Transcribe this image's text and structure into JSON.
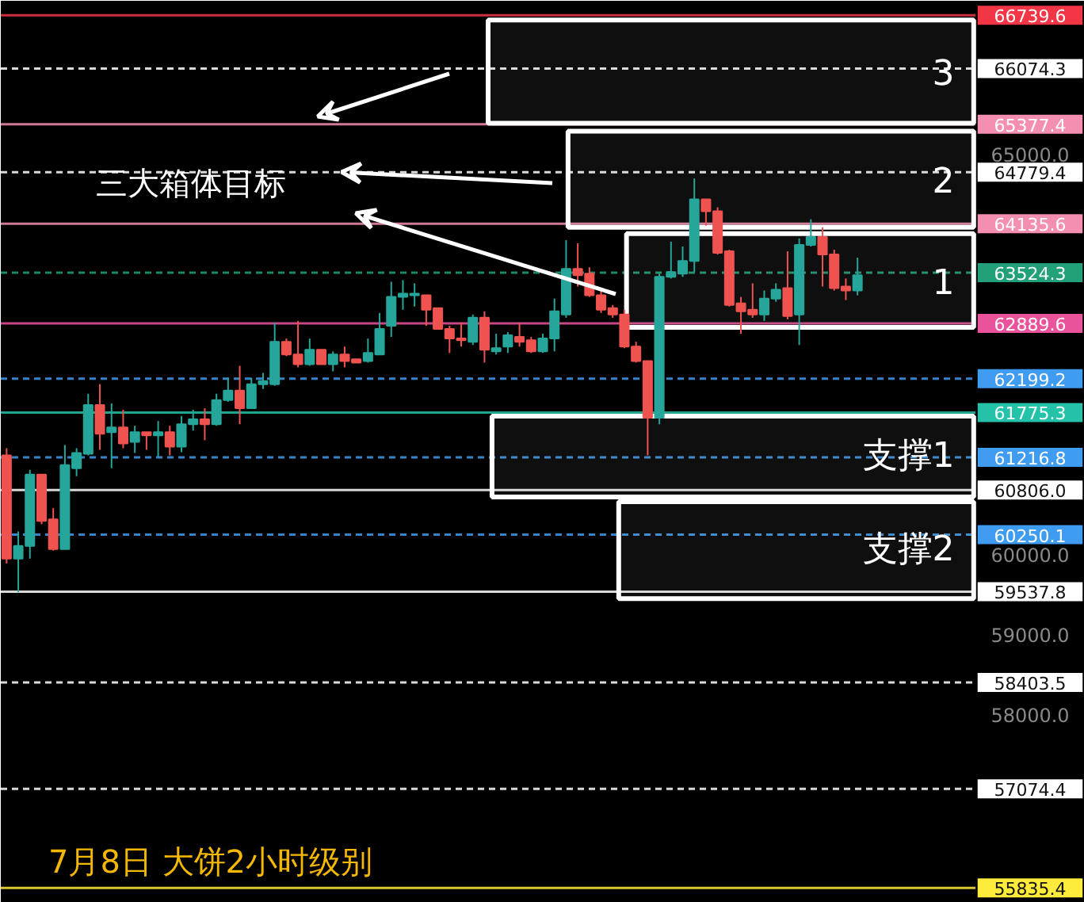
{
  "chart_data": {
    "type": "candlestick",
    "categories": [
      null,
      null,
      null,
      null,
      null,
      null,
      null,
      null,
      null,
      null,
      null,
      null,
      null,
      null,
      null,
      null,
      null,
      null,
      null,
      null,
      null,
      null,
      null,
      null,
      null,
      null,
      null,
      null,
      null,
      null,
      null,
      null,
      null,
      null,
      null,
      null,
      null,
      null,
      null,
      null,
      null,
      null,
      null,
      null,
      null,
      null,
      null,
      null,
      null,
      null,
      null,
      null,
      null,
      null,
      null,
      null,
      null,
      null,
      null,
      null,
      null,
      null,
      null,
      null,
      null,
      null,
      null,
      null,
      null,
      null,
      null,
      null,
      null,
      null,
      null,
      null,
      null,
      null,
      null,
      null,
      null,
      null,
      null,
      null,
      null,
      null,
      null,
      null,
      null,
      null,
      null,
      null,
      null
    ],
    "ohlc": [
      [
        61240,
        61330,
        59890,
        59950
      ],
      [
        59950,
        60290,
        59530,
        60110
      ],
      [
        60110,
        61060,
        59950,
        61000
      ],
      [
        61000,
        61000,
        60380,
        60420
      ],
      [
        60440,
        60580,
        60050,
        60070
      ],
      [
        60070,
        61370,
        60070,
        61120
      ],
      [
        61080,
        61330,
        60980,
        61270
      ],
      [
        61260,
        62010,
        61240,
        61870
      ],
      [
        61870,
        62130,
        61310,
        61510
      ],
      [
        61530,
        61890,
        61080,
        61590
      ],
      [
        61590,
        61810,
        61330,
        61390
      ],
      [
        61410,
        61610,
        61270,
        61530
      ],
      [
        61530,
        61530,
        61310,
        61490
      ],
      [
        61490,
        61670,
        61220,
        61530
      ],
      [
        61530,
        61610,
        61240,
        61350
      ],
      [
        61350,
        61730,
        61280,
        61630
      ],
      [
        61630,
        61810,
        61550,
        61690
      ],
      [
        61690,
        61830,
        61430,
        61630
      ],
      [
        61630,
        62010,
        61610,
        61930
      ],
      [
        61930,
        62210,
        61910,
        62050
      ],
      [
        62050,
        62360,
        61630,
        61830
      ],
      [
        61830,
        62210,
        61830,
        62130
      ],
      [
        62130,
        62270,
        62070,
        62170
      ],
      [
        62130,
        62900,
        62110,
        62660
      ],
      [
        62660,
        62700,
        62480,
        62500
      ],
      [
        62500,
        62920,
        62340,
        62380
      ],
      [
        62380,
        62700,
        62360,
        62560
      ],
      [
        62560,
        62560,
        62380,
        62380
      ],
      [
        62380,
        62540,
        62290,
        62500
      ],
      [
        62500,
        62600,
        62340,
        62420
      ],
      [
        62440,
        62440,
        62400,
        62400
      ],
      [
        62420,
        62700,
        62400,
        62520
      ],
      [
        62500,
        63020,
        62500,
        62820
      ],
      [
        62860,
        63410,
        62720,
        63220
      ],
      [
        63220,
        63430,
        63060,
        63260
      ],
      [
        63240,
        63390,
        63100,
        63260
      ],
      [
        63240,
        63240,
        62860,
        63060
      ],
      [
        63080,
        63080,
        62820,
        62820
      ],
      [
        62820,
        62860,
        62520,
        62700
      ],
      [
        62700,
        62900,
        62600,
        62680
      ],
      [
        62660,
        63000,
        62620,
        62960
      ],
      [
        62960,
        63040,
        62400,
        62560
      ],
      [
        62540,
        62760,
        62500,
        62580
      ],
      [
        62600,
        62780,
        62520,
        62740
      ],
      [
        62720,
        62900,
        62600,
        62660
      ],
      [
        62680,
        62720,
        62520,
        62540
      ],
      [
        62540,
        62760,
        62520,
        62700
      ],
      [
        62700,
        63200,
        62540,
        63040
      ],
      [
        63000,
        63930,
        62960,
        63570
      ],
      [
        63570,
        63890,
        63350,
        63490
      ],
      [
        63510,
        63590,
        63220,
        63240
      ],
      [
        63240,
        63300,
        63020,
        63060
      ],
      [
        63080,
        63120,
        62960,
        63000
      ],
      [
        63000,
        63060,
        62580,
        62600
      ],
      [
        62600,
        62660,
        62400,
        62420
      ],
      [
        62420,
        62420,
        61240,
        61710
      ],
      [
        61710,
        63510,
        61630,
        63470
      ],
      [
        63470,
        63910,
        63450,
        63530
      ],
      [
        63510,
        63850,
        63470,
        63670
      ],
      [
        63670,
        64700,
        63530,
        64440
      ],
      [
        64440,
        64440,
        64110,
        64290
      ],
      [
        64290,
        64340,
        63750,
        63770
      ],
      [
        63790,
        63810,
        63100,
        63120
      ],
      [
        63140,
        63220,
        62760,
        63040
      ],
      [
        63060,
        63390,
        62960,
        63000
      ],
      [
        63000,
        63300,
        62920,
        63200
      ],
      [
        63200,
        63390,
        63160,
        63310
      ],
      [
        63330,
        63790,
        62940,
        62980
      ],
      [
        63000,
        63950,
        62620,
        63870
      ],
      [
        63870,
        64190,
        63850,
        63970
      ],
      [
        63970,
        64090,
        63350,
        63750
      ],
      [
        63750,
        63810,
        63300,
        63330
      ],
      [
        63350,
        63450,
        63180,
        63300
      ],
      [
        63300,
        63710,
        63240,
        63490
      ],
      null,
      null,
      null,
      null,
      null,
      null,
      null,
      null,
      null,
      null,
      null,
      null,
      null,
      null,
      null,
      null,
      null,
      null,
      null
    ],
    "colors": [
      "#ef5350",
      "#26a69a",
      "#26a69a",
      "#ef5350",
      "#ef5350",
      "#26a69a",
      "#26a69a",
      "#26a69a",
      "#ef5350",
      "#26a69a",
      "#ef5350",
      "#26a69a",
      "#ef5350",
      "#26a69a",
      "#ef5350",
      "#26a69a",
      "#26a69a",
      "#ef5350",
      "#26a69a",
      "#26a69a",
      "#ef5350",
      "#26a69a",
      "#26a69a",
      "#26a69a",
      "#ef5350",
      "#ef5350",
      "#26a69a",
      "#ef5350",
      "#26a69a",
      "#ef5350",
      "#ef5350",
      "#26a69a",
      "#26a69a",
      "#26a69a",
      "#26a69a",
      "#26a69a",
      "#ef5350",
      "#ef5350",
      "#ef5350",
      "#ef5350",
      "#26a69a",
      "#ef5350",
      "#26a69a",
      "#26a69a",
      "#ef5350",
      "#ef5350",
      "#26a69a",
      "#26a69a",
      "#26a69a",
      "#ef5350",
      "#ef5350",
      "#ef5350",
      "#ef5350",
      "#ef5350",
      "#ef5350",
      "#ef5350",
      "#26a69a",
      "#26a69a",
      "#26a69a",
      "#26a69a",
      "#ef5350",
      "#ef5350",
      "#ef5350",
      "#ef5350",
      "#ef5350",
      "#26a69a",
      "#26a69a",
      "#ef5350",
      "#26a69a",
      "#26a69a",
      "#ef5350",
      "#ef5350",
      "#ef5350",
      "#26a69a",
      null,
      null,
      null,
      null,
      null,
      null,
      null,
      null,
      null,
      null,
      null,
      null,
      null,
      null,
      null,
      null,
      null,
      null,
      null
    ],
    "ylim": [
      55650,
      66920
    ],
    "yticks": [
      {
        "value": 65000,
        "label": "65000.0"
      },
      {
        "value": 60000,
        "label": "60000.0"
      },
      {
        "value": 59000,
        "label": "59000.0"
      },
      {
        "value": 58000,
        "label": "58000.0"
      }
    ],
    "tick_labels": "y",
    "grid": false,
    "ref_lines": [
      {
        "axis": "y",
        "value": 66739.6,
        "label": "66739.6",
        "color": "#f23645",
        "line_style": "solid"
      },
      {
        "axis": "y",
        "value": 66074.3,
        "label": "66074.3",
        "color": "#ffffff",
        "line_style": "dashed"
      },
      {
        "axis": "y",
        "value": 65377.4,
        "label": "65377.4",
        "color": "#f48fb1",
        "line_style": "solid"
      },
      {
        "axis": "y",
        "value": 64779.4,
        "label": "64779.4",
        "color": "#ffffff",
        "line_style": "dashed"
      },
      {
        "axis": "y",
        "value": 64135.6,
        "label": "64135.6",
        "color": "#f48fb1",
        "line_style": "solid"
      },
      {
        "axis": "y",
        "value": 63524.3,
        "label": "63524.3",
        "color": "#22a07a",
        "line_style": "dashed"
      },
      {
        "axis": "y",
        "value": 62889.6,
        "label": "62889.6",
        "color": "#e8539b",
        "line_style": "solid"
      },
      {
        "axis": "y",
        "value": 62199.2,
        "label": "62199.2",
        "color": "#3f9cf0",
        "line_style": "dashed"
      },
      {
        "axis": "y",
        "value": 61775.3,
        "label": "61775.3",
        "color": "#24c2a8",
        "line_style": "solid"
      },
      {
        "axis": "y",
        "value": 61216.8,
        "label": "61216.8",
        "color": "#3f9cf0",
        "line_style": "dashed"
      },
      {
        "axis": "y",
        "value": 60806.0,
        "label": "60806.0",
        "color": "#ffffff",
        "line_style": "solid"
      },
      {
        "axis": "y",
        "value": 60250.1,
        "label": "60250.1",
        "color": "#3f9cf0",
        "line_style": "dashed"
      },
      {
        "axis": "y",
        "value": 59537.8,
        "label": "59537.8",
        "color": "#ffffff",
        "line_style": "solid"
      },
      {
        "axis": "y",
        "value": 58403.5,
        "label": "58403.5",
        "color": "#ffffff",
        "line_style": "dashed"
      },
      {
        "axis": "y",
        "value": 57074.4,
        "label": "57074.4",
        "color": "#ffffff",
        "line_style": "dashed"
      },
      {
        "axis": "y",
        "value": 55835.4,
        "label": "55835.4",
        "color": "#ffeb3b",
        "line_style": "solid"
      }
    ],
    "bands": [
      {
        "axis": "y",
        "from": 65390,
        "to": 66680,
        "label": "3",
        "color": "#ffffff"
      },
      {
        "axis": "y",
        "from": 64090,
        "to": 65290,
        "label": "2",
        "color": "#ffffff"
      },
      {
        "axis": "y",
        "from": 62840,
        "to": 64010,
        "label": "1",
        "color": "#ffffff"
      },
      {
        "axis": "y",
        "from": 60720,
        "to": 61730,
        "label": "支撑1",
        "color": "#ffffff"
      },
      {
        "axis": "y",
        "from": 59450,
        "to": 60660,
        "label": "支撑2",
        "color": "#ffffff"
      }
    ],
    "annotations": [
      "三大箱体目标",
      "7月8日 大饼2小时级别"
    ]
  }
}
